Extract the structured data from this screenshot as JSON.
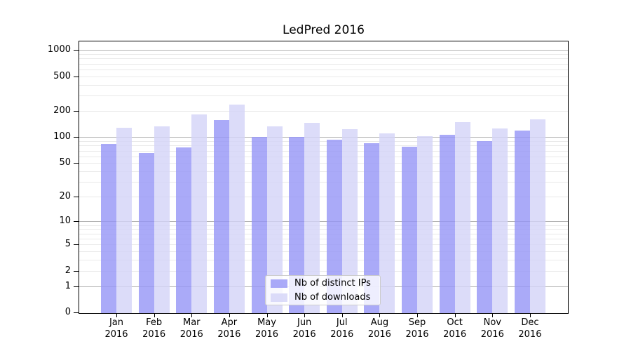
{
  "title": "LedPred 2016",
  "chart_data": {
    "type": "bar",
    "title": "LedPred 2016",
    "categories": [
      "Jan",
      "Feb",
      "Mar",
      "Apr",
      "May",
      "Jun",
      "Jul",
      "Aug",
      "Sep",
      "Oct",
      "Nov",
      "Dec"
    ],
    "category_year": "2016",
    "series": [
      {
        "name": "Nb of distinct IPs",
        "color": "rgba(149,149,246,0.8)",
        "values": [
          84,
          66,
          76,
          158,
          101,
          101,
          93,
          86,
          77,
          106,
          91,
          120
        ]
      },
      {
        "name": "Nb of downloads",
        "color": "rgba(211,211,247,0.8)",
        "values": [
          129,
          134,
          182,
          237,
          134,
          147,
          123,
          110,
          103,
          150,
          125,
          161
        ]
      }
    ],
    "yscale": "log(1+x)",
    "ylim": [
      0,
      1250
    ],
    "y_ticks": [
      0,
      1,
      2,
      5,
      10,
      20,
      50,
      100,
      200,
      500,
      1000
    ],
    "y_major_gridlines": [
      1,
      10,
      100,
      1000
    ],
    "grid": true,
    "legend_position": "lower center"
  },
  "colors": {
    "major_grid": "#b2b2b2",
    "minor_grid": "#e9e9e9",
    "axis": "#000000",
    "legend_border": "#cccccc",
    "legend_bg": "rgba(255,255,255,0.8)"
  }
}
